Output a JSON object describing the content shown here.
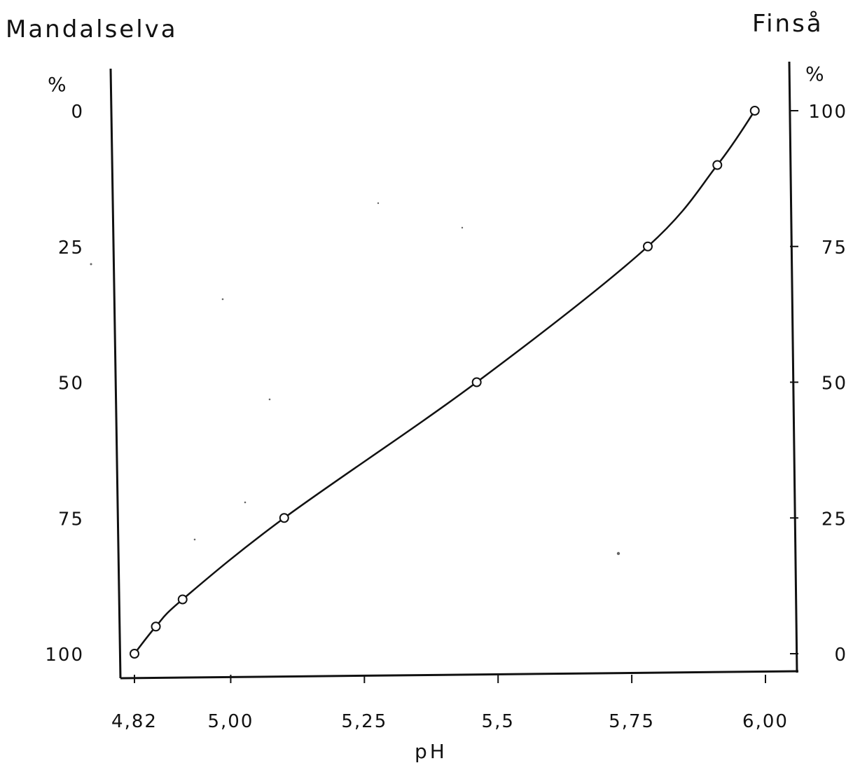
{
  "chart_data": {
    "type": "line",
    "left_title": "Mandalselva",
    "right_title": "Finså",
    "left_unit": "%",
    "right_unit": "%",
    "xlabel": "pH",
    "x_ticks": [
      4.82,
      5.0,
      5.25,
      5.5,
      5.75,
      6.0
    ],
    "x_tick_labels": [
      "4,82",
      "5,00",
      "5,25",
      "5,5",
      "5,75",
      "6,00"
    ],
    "xlim": [
      4.82,
      6.0
    ],
    "left_axis": {
      "ticks": [
        0,
        25,
        50,
        75,
        100
      ],
      "tick_labels": [
        "0",
        "25",
        "50",
        "75",
        "100"
      ],
      "inverted": true,
      "ylim": [
        0,
        100
      ]
    },
    "right_axis": {
      "ticks": [
        100,
        75,
        50,
        25,
        0
      ],
      "tick_labels": [
        "100",
        "75",
        "50",
        "25",
        "0"
      ],
      "ylim": [
        0,
        100
      ]
    },
    "series": [
      {
        "markers": "circle",
        "x": [
          4.82,
          4.86,
          4.91,
          5.1,
          5.46,
          5.78,
          5.91,
          5.98
        ],
        "y": [
          0,
          5,
          10,
          25,
          50,
          75,
          90,
          100
        ]
      }
    ],
    "grid": false
  }
}
